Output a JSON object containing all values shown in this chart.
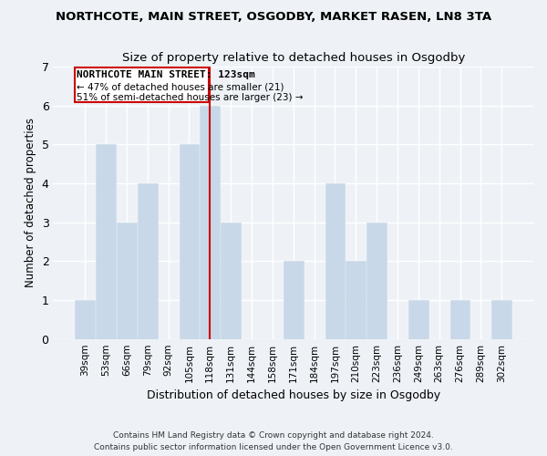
{
  "title": "NORTHCOTE, MAIN STREET, OSGODBY, MARKET RASEN, LN8 3TA",
  "subtitle": "Size of property relative to detached houses in Osgodby",
  "xlabel": "Distribution of detached houses by size in Osgodby",
  "ylabel": "Number of detached properties",
  "bar_color": "#c8d8e8",
  "bar_edge_color": "#d0dde8",
  "categories": [
    "39sqm",
    "53sqm",
    "66sqm",
    "79sqm",
    "92sqm",
    "105sqm",
    "118sqm",
    "131sqm",
    "144sqm",
    "158sqm",
    "171sqm",
    "184sqm",
    "197sqm",
    "210sqm",
    "223sqm",
    "236sqm",
    "249sqm",
    "263sqm",
    "276sqm",
    "289sqm",
    "302sqm"
  ],
  "values": [
    1,
    5,
    3,
    4,
    0,
    5,
    6,
    3,
    0,
    0,
    2,
    0,
    4,
    2,
    3,
    0,
    1,
    0,
    1,
    0,
    1
  ],
  "marker_index": 6,
  "marker_label": "NORTHCOTE MAIN STREET: 123sqm",
  "marker_color": "#cc0000",
  "annotation_line1": "← 47% of detached houses are smaller (21)",
  "annotation_line2": "51% of semi-detached houses are larger (23) →",
  "ylim": [
    0,
    7
  ],
  "yticks": [
    0,
    1,
    2,
    3,
    4,
    5,
    6,
    7
  ],
  "background_color": "#eef2f7",
  "grid_color": "#ffffff",
  "footer_line1": "Contains HM Land Registry data © Crown copyright and database right 2024.",
  "footer_line2": "Contains public sector information licensed under the Open Government Licence v3.0."
}
